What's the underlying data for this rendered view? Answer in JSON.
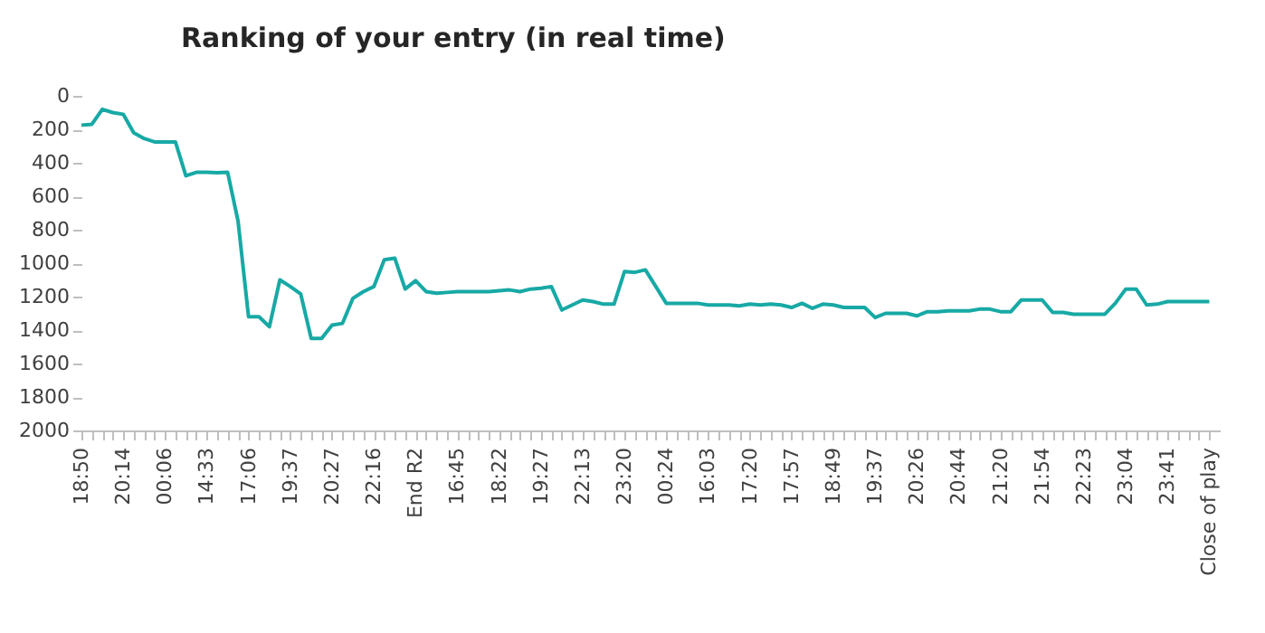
{
  "chart_data": {
    "type": "line",
    "title": "Ranking of your entry (in real time)",
    "categories": [
      "18:50",
      null,
      null,
      null,
      "20:14",
      null,
      null,
      null,
      "00:06",
      null,
      null,
      null,
      "14:33",
      null,
      null,
      null,
      "17:06",
      null,
      null,
      null,
      "19:37",
      null,
      null,
      null,
      "20:27",
      null,
      null,
      null,
      "22:16",
      null,
      null,
      null,
      "End R2",
      null,
      null,
      null,
      "16:45",
      null,
      null,
      null,
      "18:22",
      null,
      null,
      null,
      "19:27",
      null,
      null,
      null,
      "22:13",
      null,
      null,
      null,
      "23:20",
      null,
      null,
      null,
      "00:24",
      null,
      null,
      null,
      "16:03",
      null,
      null,
      null,
      "17:20",
      null,
      null,
      null,
      "17:57",
      null,
      null,
      null,
      "18:49",
      null,
      null,
      null,
      "19:37",
      null,
      null,
      null,
      "20:26",
      null,
      null,
      null,
      "20:44",
      null,
      null,
      null,
      "21:20",
      null,
      null,
      null,
      "21:54",
      null,
      null,
      null,
      "22:23",
      null,
      null,
      null,
      "23:04",
      null,
      null,
      null,
      "23:41",
      null,
      null,
      null,
      "Close of play"
    ],
    "series": [
      {
        "color": "#17a9a5",
        "values": [
          175,
          170,
          80,
          100,
          110,
          220,
          255,
          275,
          275,
          275,
          478,
          457,
          457,
          460,
          457,
          750,
          1320,
          1320,
          1380,
          1100,
          1140,
          1185,
          1450,
          1450,
          1370,
          1360,
          1210,
          1170,
          1140,
          980,
          970,
          1155,
          1105,
          1170,
          1180,
          1175,
          1170,
          1170,
          1170,
          1170,
          1165,
          1160,
          1170,
          1155,
          1150,
          1140,
          1280,
          1250,
          1220,
          1230,
          1245,
          1245,
          1050,
          1055,
          1040,
          1140,
          1240,
          1240,
          1240,
          1240,
          1250,
          1250,
          1250,
          1255,
          1245,
          1250,
          1245,
          1250,
          1265,
          1240,
          1270,
          1245,
          1250,
          1265,
          1265,
          1265,
          1325,
          1300,
          1300,
          1300,
          1315,
          1290,
          1290,
          1285,
          1285,
          1285,
          1275,
          1275,
          1290,
          1290,
          1220,
          1220,
          1220,
          1295,
          1295,
          1305,
          1305,
          1305,
          1305,
          1240,
          1155,
          1155,
          1250,
          1245,
          1230,
          1230,
          1230,
          1230,
          1230
        ]
      }
    ],
    "ylim": [
      2000,
      0
    ],
    "yticks": [
      0,
      200,
      400,
      600,
      800,
      1000,
      1200,
      1400,
      1600,
      1800,
      2000
    ],
    "grid": false
  }
}
